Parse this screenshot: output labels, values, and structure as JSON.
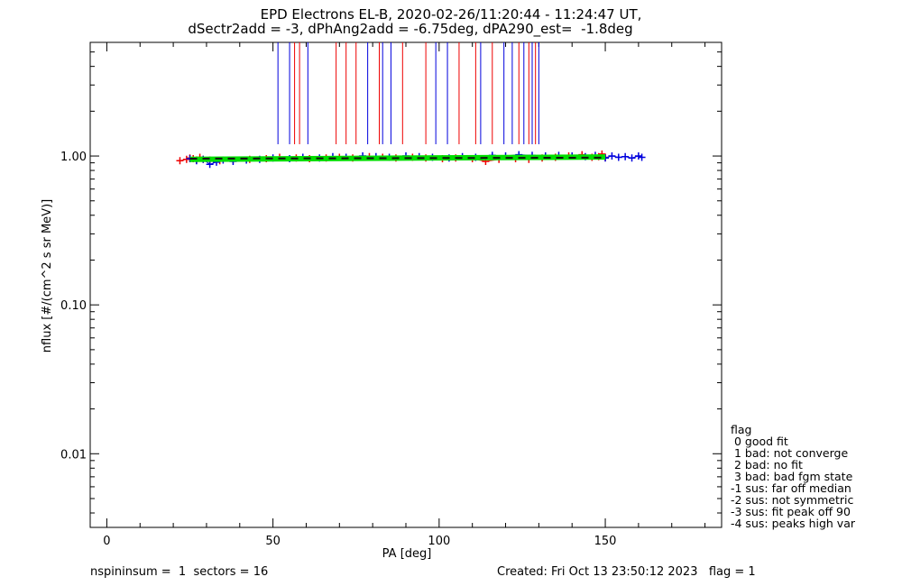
{
  "title": {
    "line1": "EPD Electrons EL-B, 2020-02-26/11:20:44 - 11:24:47 UT,",
    "line2": "dSectr2add = -3, dPhAng2add = -6.75deg, dPA290_est=  -1.8deg"
  },
  "footer": {
    "left": "nspininsum =  1  sectors = 16",
    "right": "Created: Fri Oct 13 23:50:12 2023   flag = 1"
  },
  "flag_legend": {
    "header": "flag",
    "items": [
      " 0 good fit",
      " 1 bad: not converge",
      " 2 bad: no fit",
      " 3 bad: bad fgm state",
      "-1 sus: far off median",
      "-2 sus: not symmetric",
      "-3 sus: fit peak off 90",
      "-4 sus: peaks high var"
    ]
  },
  "colors": {
    "red": "#ee0000",
    "blue": "#0000dd",
    "green": "#00dd00",
    "dash": "#111111"
  },
  "chart_data": {
    "type": "scatter",
    "xlabel": "PA [deg]",
    "ylabel": "nflux [#/(cm^2 s sr MeV)]",
    "xlim": [
      -5,
      185
    ],
    "ylim": [
      0.0032,
      5.8
    ],
    "yscale": "log",
    "x_ticks": [
      0,
      50,
      100,
      150
    ],
    "x_ticklabels": [
      "0",
      "50",
      "100",
      "150"
    ],
    "y_ticks": [
      0.01,
      0.1,
      1.0
    ],
    "y_ticklabels": [
      "0.01",
      "0.10",
      "1.00"
    ],
    "series": [
      {
        "color": "red",
        "x": [
          22,
          24,
          25,
          26,
          27,
          28,
          29,
          31,
          34,
          38,
          43,
          48,
          52,
          57,
          61,
          66,
          70,
          74,
          79,
          83,
          87,
          92,
          96,
          101,
          105,
          110,
          114,
          118,
          123,
          127,
          131,
          135,
          139,
          143,
          146,
          148,
          149,
          150
        ],
        "y": [
          0.93,
          0.95,
          0.97,
          0.96,
          0.94,
          0.98,
          0.95,
          0.94,
          0.93,
          0.94,
          0.95,
          0.96,
          0.98,
          0.97,
          0.96,
          0.97,
          0.98,
          0.97,
          0.99,
          0.98,
          0.97,
          0.98,
          0.97,
          0.96,
          0.97,
          0.96,
          0.92,
          0.95,
          0.96,
          0.95,
          0.97,
          0.98,
          1.0,
          1.02,
          0.98,
          0.99,
          1.03,
          0.98
        ]
      },
      {
        "color": "blue",
        "x": [
          25,
          27,
          29,
          31,
          33,
          35,
          38,
          42,
          46,
          50,
          55,
          59,
          64,
          68,
          72,
          77,
          81,
          85,
          90,
          94,
          98,
          103,
          107,
          111,
          116,
          120,
          124,
          128,
          132,
          136,
          140,
          144,
          147,
          150,
          152,
          154,
          156,
          158,
          160,
          161
        ],
        "y": [
          0.96,
          0.93,
          0.95,
          0.88,
          0.91,
          0.94,
          0.92,
          0.94,
          0.95,
          0.97,
          0.96,
          0.98,
          0.97,
          0.99,
          0.98,
          1.0,
          0.99,
          0.98,
          1.0,
          0.99,
          0.98,
          0.97,
          0.99,
          0.98,
          1.01,
          1.0,
          1.02,
          1.01,
          1.0,
          1.01,
          1.0,
          0.99,
          1.01,
          0.97,
          1.0,
          0.98,
          0.99,
          0.97,
          1.0,
          0.98
        ]
      }
    ],
    "fit_line": {
      "color": "green",
      "x": [
        25,
        150
      ],
      "y": [
        0.95,
        0.985
      ]
    },
    "dashed_line": {
      "color": "dash",
      "x": [
        25,
        150
      ],
      "y": [
        0.96,
        0.975
      ]
    },
    "vertical_lines": [
      {
        "x": 51.5,
        "color": "blue"
      },
      {
        "x": 55.0,
        "color": "blue"
      },
      {
        "x": 56.5,
        "color": "red"
      },
      {
        "x": 58.0,
        "color": "red"
      },
      {
        "x": 60.5,
        "color": "blue"
      },
      {
        "x": 69.0,
        "color": "red"
      },
      {
        "x": 72.0,
        "color": "red"
      },
      {
        "x": 75.0,
        "color": "red"
      },
      {
        "x": 78.5,
        "color": "blue"
      },
      {
        "x": 82.0,
        "color": "red"
      },
      {
        "x": 83.0,
        "color": "blue"
      },
      {
        "x": 85.5,
        "color": "blue"
      },
      {
        "x": 89.0,
        "color": "red"
      },
      {
        "x": 96.0,
        "color": "red"
      },
      {
        "x": 99.0,
        "color": "blue"
      },
      {
        "x": 102.5,
        "color": "blue"
      },
      {
        "x": 106.0,
        "color": "red"
      },
      {
        "x": 111.0,
        "color": "red"
      },
      {
        "x": 112.5,
        "color": "blue"
      },
      {
        "x": 116.0,
        "color": "red"
      },
      {
        "x": 119.5,
        "color": "blue"
      },
      {
        "x": 122.0,
        "color": "blue"
      },
      {
        "x": 124.0,
        "color": "red"
      },
      {
        "x": 125.5,
        "color": "blue"
      },
      {
        "x": 127.0,
        "color": "red"
      },
      {
        "x": 128.0,
        "color": "blue"
      },
      {
        "x": 129.0,
        "color": "red"
      },
      {
        "x": 130.0,
        "color": "blue"
      }
    ],
    "vertical_line_y_range": [
      1.2,
      5.8
    ]
  }
}
